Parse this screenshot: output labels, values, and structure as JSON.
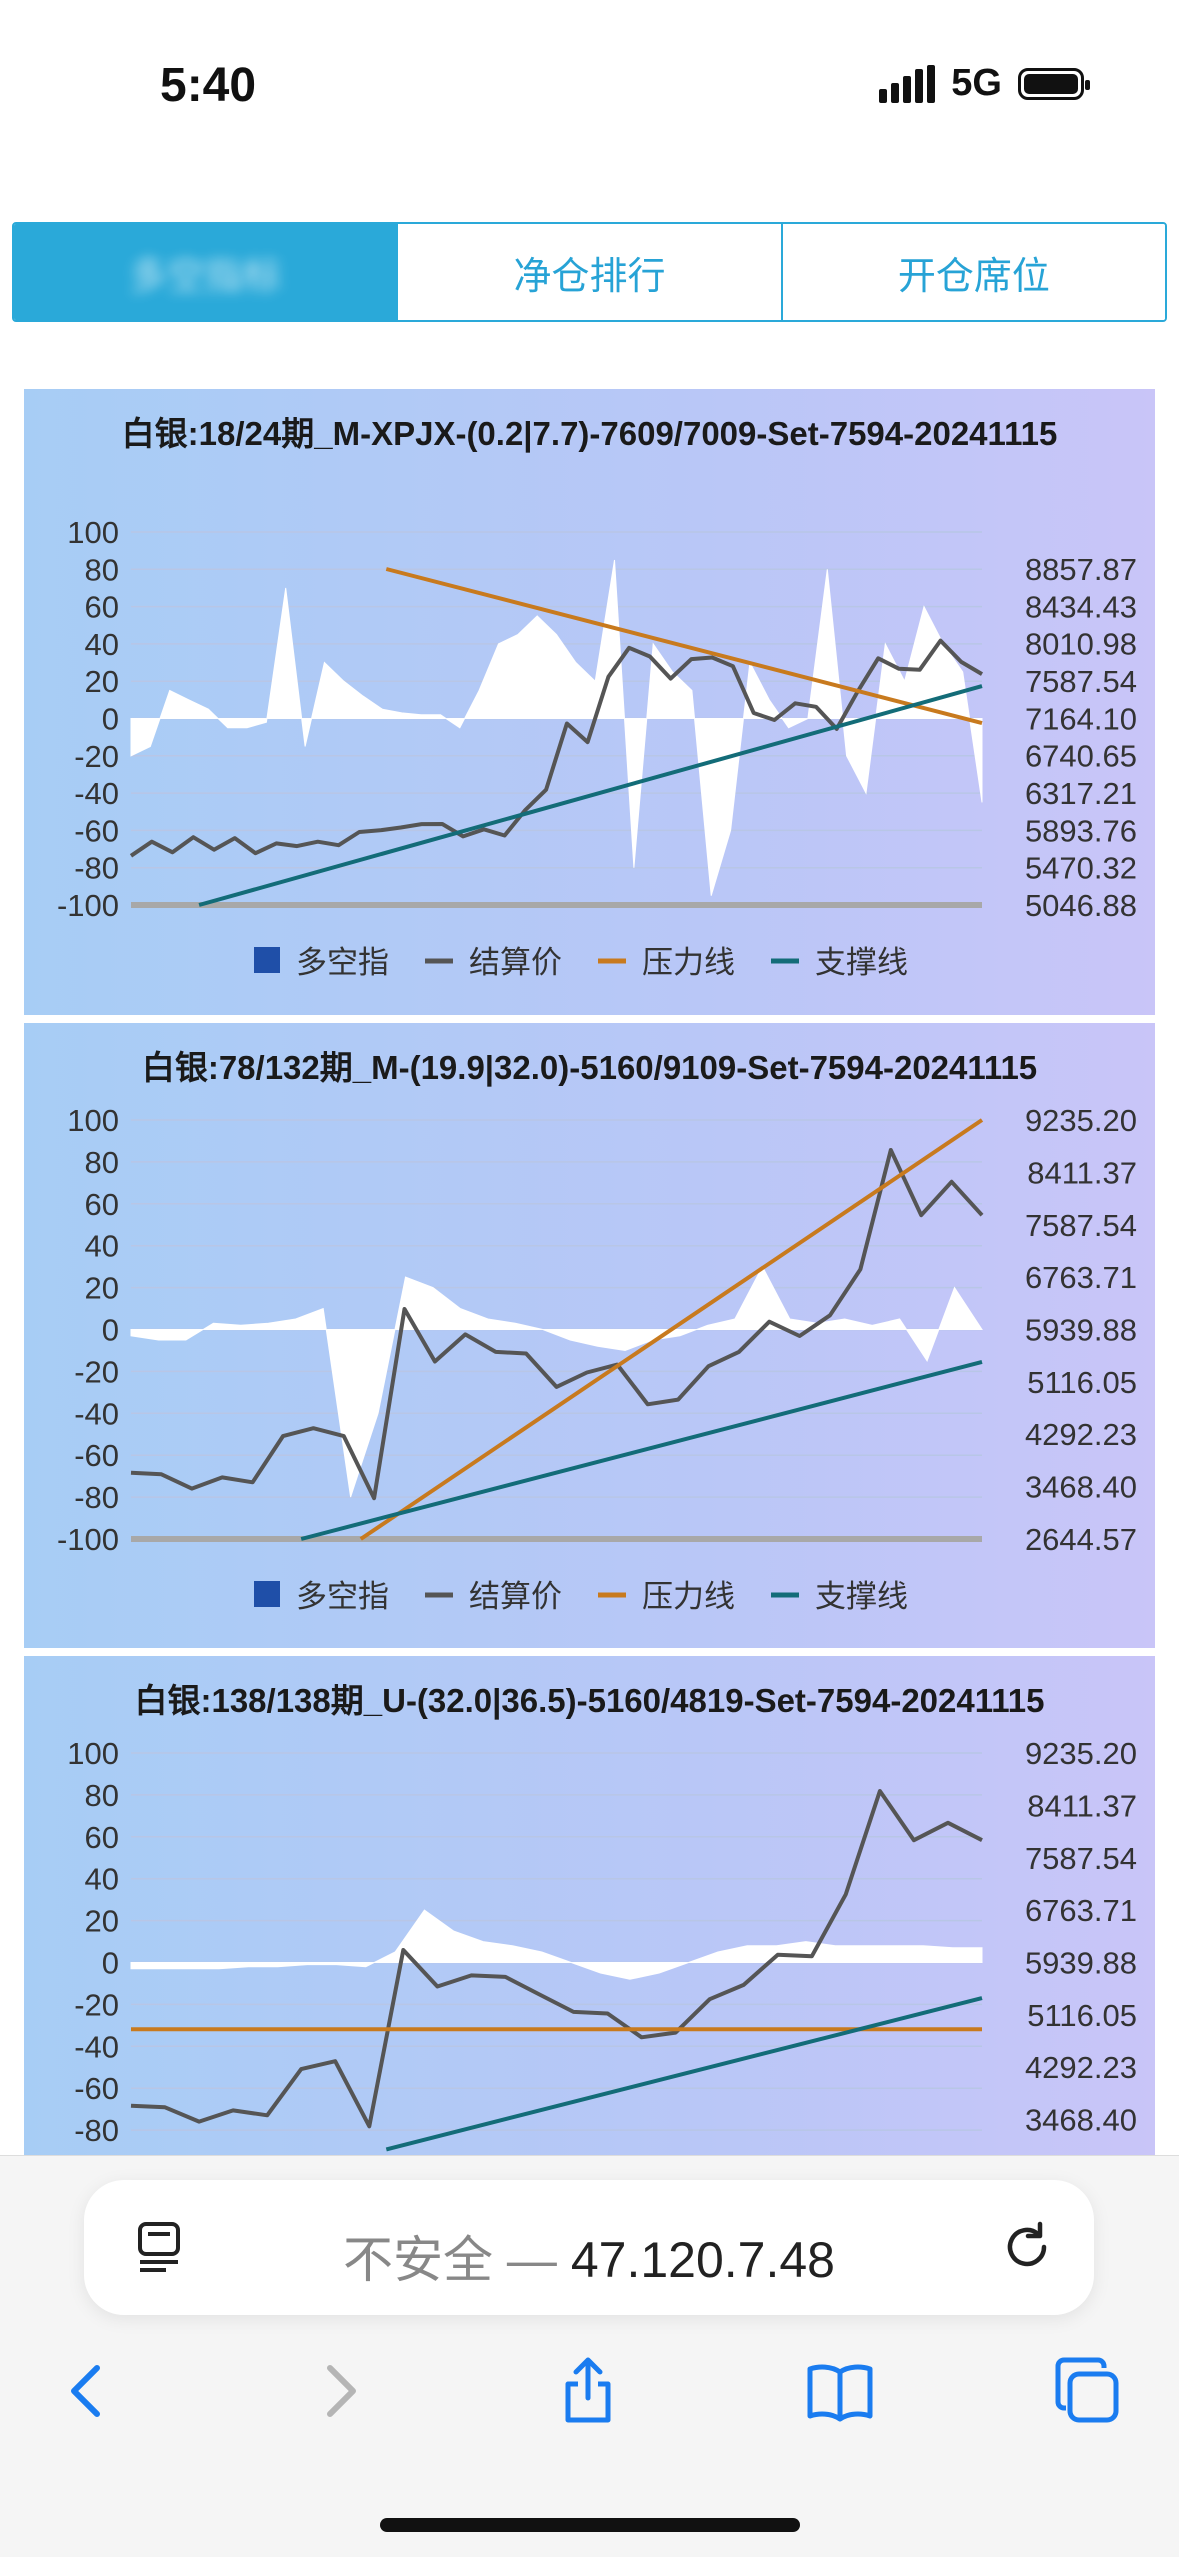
{
  "status_bar": {
    "time": "5:40",
    "network": "5G"
  },
  "tabs": [
    {
      "label": "多空指标"
    },
    {
      "label": "净仓排行"
    },
    {
      "label": "开仓席位"
    }
  ],
  "colors": {
    "accent": "#2aa9d9",
    "settle": "#555555",
    "pressure": "#c87a1e",
    "support": "#136c78",
    "long_short": "#1f4fa8"
  },
  "legend": [
    {
      "name": "多空指",
      "color": "#1f4fa8"
    },
    {
      "name": "结算价",
      "color": "#555555"
    },
    {
      "name": "压力线",
      "color": "#c87a1e"
    },
    {
      "name": "支撑线",
      "color": "#136c78"
    }
  ],
  "chart_data": [
    {
      "type": "line",
      "title": "白银:18/24期_M-XPJX-(0.2|7.7)-7609/7009-Set-7594-20241115",
      "y_left_ticks": [
        "100",
        "80",
        "60",
        "40",
        "20",
        "0",
        "-20",
        "-40",
        "-60",
        "-80",
        "-100"
      ],
      "y_right_ticks": [
        "8857.87",
        "8434.43",
        "8010.98",
        "7587.54",
        "7164.10",
        "6740.65",
        "6317.21",
        "5893.76",
        "5470.32",
        "5046.88"
      ],
      "ylim_left": [
        -100,
        100
      ],
      "ylim_right": [
        5046.88,
        8857.87
      ],
      "series": [
        {
          "name": "多空指",
          "kind": "area",
          "values": [
            -20,
            -15,
            15,
            10,
            5,
            -5,
            -5,
            -2,
            70,
            -15,
            30,
            20,
            12,
            5,
            3,
            2,
            2,
            -5,
            15,
            40,
            45,
            55,
            45,
            30,
            20,
            85,
            -80,
            40,
            25,
            15,
            -95,
            -60,
            30,
            10,
            -5,
            0,
            80,
            -20,
            -40,
            40,
            20,
            60,
            40,
            25,
            -45
          ]
        },
        {
          "name": "结算价",
          "kind": "line",
          "values": [
            5650,
            5720,
            5690,
            5770,
            5720,
            5760,
            5680,
            5700,
            5760,
            5720,
            5770,
            5830,
            5940,
            5880,
            6010,
            5920,
            5870,
            5860,
            5880,
            6080,
            6400,
            7060,
            6940,
            7590,
            8010,
            7820,
            7660,
            7790,
            7900,
            7710,
            7270,
            7100,
            7380,
            7250,
            7090,
            7420,
            7890,
            7680,
            7760,
            8000,
            7850,
            7620
          ]
        },
        {
          "name": "压力线",
          "kind": "line",
          "from": [
            0.3,
            8857.87
          ],
          "to": [
            1,
            7110
          ]
        },
        {
          "name": "支撑线",
          "kind": "line",
          "from": [
            0.08,
            5046.88
          ],
          "to": [
            1,
            7530
          ]
        }
      ]
    },
    {
      "type": "line",
      "title": "白银:78/132期_M-(19.9|32.0)-5160/9109-Set-7594-20241115",
      "y_left_ticks": [
        "100",
        "80",
        "60",
        "40",
        "20",
        "0",
        "-20",
        "-40",
        "-60",
        "-80",
        "-100"
      ],
      "y_right_ticks": [
        "9235.20",
        "8411.37",
        "7587.54",
        "6763.71",
        "5939.88",
        "5116.05",
        "4292.23",
        "3468.40",
        "2644.57"
      ],
      "ylim_left": [
        -100,
        100
      ],
      "ylim_right": [
        2644.57,
        9235.2
      ],
      "series": [
        {
          "name": "多空指",
          "kind": "area",
          "values": [
            -3,
            -5,
            -5,
            3,
            2,
            3,
            5,
            10,
            -80,
            -40,
            25,
            20,
            10,
            5,
            3,
            0,
            -5,
            -8,
            -10,
            -5,
            -3,
            2,
            5,
            30,
            5,
            3,
            5,
            2,
            5,
            -15,
            20,
            0
          ]
        },
        {
          "name": "结算价",
          "kind": "line",
          "values": [
            3750,
            3600,
            3500,
            3550,
            3600,
            4200,
            4450,
            4200,
            3350,
            6200,
            5500,
            5800,
            5650,
            5500,
            5100,
            5200,
            5450,
            4700,
            4900,
            5300,
            5650,
            6000,
            5900,
            6100,
            6950,
            8700,
            7800,
            8200,
            7800
          ]
        },
        {
          "name": "压力线",
          "kind": "line",
          "from": [
            0.27,
            2644.57
          ],
          "to": [
            1,
            9235.2
          ]
        },
        {
          "name": "支撑线",
          "kind": "line",
          "from": [
            0.2,
            2644.57
          ],
          "to": [
            1,
            5430
          ]
        }
      ]
    },
    {
      "type": "line",
      "title": "白银:138/138期_U-(32.0|36.5)-5160/4819-Set-7594-20241115",
      "y_left_ticks": [
        "100",
        "80",
        "60",
        "40",
        "20",
        "0",
        "-20",
        "-40",
        "-60",
        "-80"
      ],
      "y_right_ticks": [
        "9235.20",
        "8411.37",
        "7587.54",
        "6763.71",
        "5939.88",
        "5116.05",
        "4292.23",
        "3468.40"
      ],
      "ylim_left": [
        -100,
        100
      ],
      "ylim_right": [
        2644.57,
        9235.2
      ],
      "series": [
        {
          "name": "多空指",
          "kind": "area",
          "values": [
            -3,
            -3,
            -3,
            -3,
            -2,
            -2,
            -1,
            -1,
            -2,
            5,
            25,
            15,
            10,
            8,
            5,
            0,
            -5,
            -8,
            -5,
            0,
            5,
            8,
            8,
            10,
            8,
            8,
            8,
            8,
            7,
            7
          ]
        },
        {
          "name": "结算价",
          "kind": "line",
          "values": [
            3750,
            3600,
            3500,
            3550,
            3600,
            4200,
            4450,
            3300,
            6200,
            5500,
            5800,
            5650,
            5500,
            5100,
            5200,
            4700,
            4900,
            5300,
            5650,
            6000,
            6100,
            6950,
            8700,
            7800,
            8200,
            7800
          ]
        },
        {
          "name": "压力线",
          "kind": "line",
          "from": [
            0,
            4890
          ],
          "to": [
            1,
            4890
          ]
        },
        {
          "name": "支撑线",
          "kind": "line",
          "from": [
            0.3,
            3000
          ],
          "to": [
            1,
            5380
          ]
        }
      ]
    }
  ],
  "browser": {
    "insecure_label": "不安全",
    "separator": " — ",
    "host": "47.120.7.48"
  }
}
